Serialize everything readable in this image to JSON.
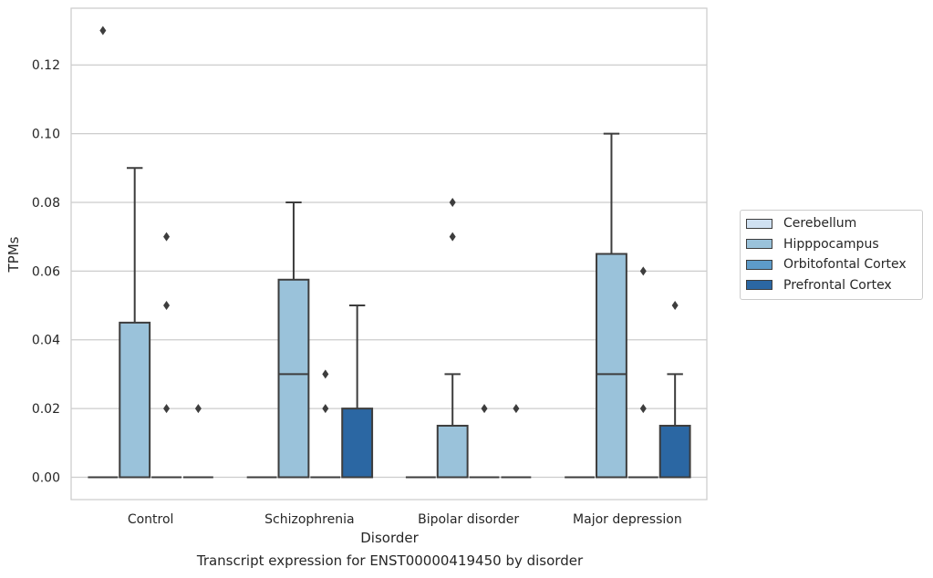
{
  "chart_data": {
    "type": "box",
    "xlabel": "Disorder",
    "ylabel": "TPMs",
    "caption": "Transcript expression for ENST00000419450 by disorder",
    "categories": [
      "Control",
      "Schizophrenia",
      "Bipolar disorder",
      "Major depression"
    ],
    "ylim": [
      -0.0065,
      0.1365
    ],
    "yticks": [
      "0.00",
      "0.02",
      "0.04",
      "0.06",
      "0.08",
      "0.10",
      "0.12"
    ],
    "ytick_values": [
      0,
      0.02,
      0.04,
      0.06,
      0.08,
      0.1,
      0.12
    ],
    "grid": true,
    "legend_position": "right",
    "series": [
      {
        "name": "Cerebellum",
        "color": "#d0e1f2",
        "boxes": [
          {
            "q1": 0,
            "median": 0,
            "q3": 0,
            "whislo": 0,
            "whishi": 0,
            "fliers": [
              0.13
            ]
          },
          {
            "q1": 0,
            "median": 0,
            "q3": 0,
            "whislo": 0,
            "whishi": 0,
            "fliers": []
          },
          {
            "q1": 0,
            "median": 0,
            "q3": 0,
            "whislo": 0,
            "whishi": 0,
            "fliers": []
          },
          {
            "q1": 0,
            "median": 0,
            "q3": 0,
            "whislo": 0,
            "whishi": 0,
            "fliers": []
          }
        ]
      },
      {
        "name": "Hipppocampus",
        "color": "#9ac2da",
        "boxes": [
          {
            "q1": 0,
            "median": 0,
            "q3": 0.045,
            "whislo": 0,
            "whishi": 0.09,
            "fliers": []
          },
          {
            "q1": 0,
            "median": 0.03,
            "q3": 0.0575,
            "whislo": 0,
            "whishi": 0.08,
            "fliers": []
          },
          {
            "q1": 0,
            "median": 0,
            "q3": 0.015,
            "whislo": 0,
            "whishi": 0.03,
            "fliers": [
              0.08,
              0.07
            ]
          },
          {
            "q1": 0,
            "median": 0.03,
            "q3": 0.065,
            "whislo": 0,
            "whishi": 0.1,
            "fliers": []
          }
        ]
      },
      {
        "name": "Orbitofontal Cortex",
        "color": "#5d9bc9",
        "boxes": [
          {
            "q1": 0,
            "median": 0,
            "q3": 0,
            "whislo": 0,
            "whishi": 0,
            "fliers": [
              0.07,
              0.05,
              0.02
            ]
          },
          {
            "q1": 0,
            "median": 0,
            "q3": 0,
            "whislo": 0,
            "whishi": 0,
            "fliers": [
              0.03,
              0.02
            ]
          },
          {
            "q1": 0,
            "median": 0,
            "q3": 0,
            "whislo": 0,
            "whishi": 0,
            "fliers": [
              0.02
            ]
          },
          {
            "q1": 0,
            "median": 0,
            "q3": 0,
            "whislo": 0,
            "whishi": 0,
            "fliers": [
              0.06,
              0.02
            ]
          }
        ]
      },
      {
        "name": "Prefrontal Cortex",
        "color": "#2b67a3",
        "boxes": [
          {
            "q1": 0,
            "median": 0,
            "q3": 0,
            "whislo": 0,
            "whishi": 0,
            "fliers": [
              0.02
            ]
          },
          {
            "q1": 0,
            "median": 0,
            "q3": 0.02,
            "whislo": 0,
            "whishi": 0.05,
            "fliers": []
          },
          {
            "q1": 0,
            "median": 0,
            "q3": 0,
            "whislo": 0,
            "whishi": 0,
            "fliers": [
              0.02
            ]
          },
          {
            "q1": 0,
            "median": 0,
            "q3": 0.015,
            "whislo": 0,
            "whishi": 0.03,
            "fliers": [
              0.05
            ]
          }
        ]
      }
    ]
  }
}
